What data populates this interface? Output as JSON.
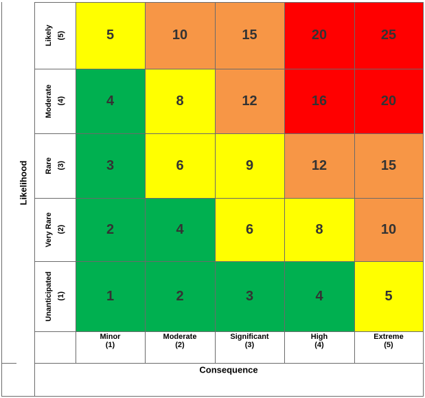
{
  "axis": {
    "y_title": "Likelihood",
    "x_title": "Consequence"
  },
  "rows": [
    {
      "label": "Likely",
      "num": "(5)",
      "values": [
        "5",
        "10",
        "15",
        "20",
        "25"
      ],
      "colors": [
        "#ffff00",
        "#f79646",
        "#f79646",
        "#ff0000",
        "#ff0000"
      ]
    },
    {
      "label": "Moderate",
      "num": "(4)",
      "values": [
        "4",
        "8",
        "12",
        "16",
        "20"
      ],
      "colors": [
        "#00b050",
        "#ffff00",
        "#f79646",
        "#ff0000",
        "#ff0000"
      ]
    },
    {
      "label": "Rare",
      "num": "(3)",
      "values": [
        "3",
        "6",
        "9",
        "12",
        "15"
      ],
      "colors": [
        "#00b050",
        "#ffff00",
        "#ffff00",
        "#f79646",
        "#f79646"
      ]
    },
    {
      "label": "Very Rare",
      "num": "(2)",
      "values": [
        "2",
        "4",
        "6",
        "8",
        "10"
      ],
      "colors": [
        "#00b050",
        "#00b050",
        "#ffff00",
        "#ffff00",
        "#f79646"
      ]
    },
    {
      "label": "Unanticipated",
      "num": "(1)",
      "values": [
        "1",
        "2",
        "3",
        "4",
        "5"
      ],
      "colors": [
        "#00b050",
        "#00b050",
        "#00b050",
        "#00b050",
        "#ffff00"
      ]
    }
  ],
  "columns": [
    {
      "label": "Minor",
      "num": "(1)"
    },
    {
      "label": "Moderate",
      "num": "(2)"
    },
    {
      "label": "Significant",
      "num": "(3)"
    },
    {
      "label": "High",
      "num": "(4)"
    },
    {
      "label": "Extreme",
      "num": "(5)"
    }
  ]
}
